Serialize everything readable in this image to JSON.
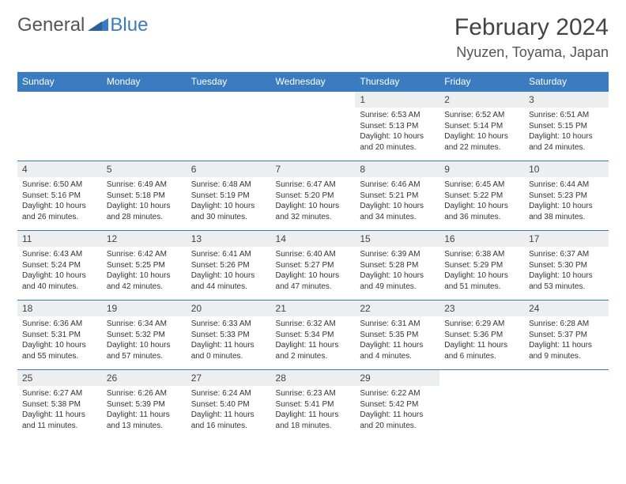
{
  "brand": {
    "part1": "General",
    "part2": "Blue"
  },
  "header": {
    "month": "February 2024",
    "location": "Nyuzen, Toyama, Japan"
  },
  "colors": {
    "accent": "#3b7bbf",
    "header_bg": "#3b7bbf",
    "daynum_bg": "#eceef0",
    "text": "#333333"
  },
  "weekdays": [
    "Sunday",
    "Monday",
    "Tuesday",
    "Wednesday",
    "Thursday",
    "Friday",
    "Saturday"
  ],
  "weeks": [
    [
      {
        "day": "",
        "sunrise": "",
        "sunset": "",
        "daylight": ""
      },
      {
        "day": "",
        "sunrise": "",
        "sunset": "",
        "daylight": ""
      },
      {
        "day": "",
        "sunrise": "",
        "sunset": "",
        "daylight": ""
      },
      {
        "day": "",
        "sunrise": "",
        "sunset": "",
        "daylight": ""
      },
      {
        "day": "1",
        "sunrise": "Sunrise: 6:53 AM",
        "sunset": "Sunset: 5:13 PM",
        "daylight": "Daylight: 10 hours and 20 minutes."
      },
      {
        "day": "2",
        "sunrise": "Sunrise: 6:52 AM",
        "sunset": "Sunset: 5:14 PM",
        "daylight": "Daylight: 10 hours and 22 minutes."
      },
      {
        "day": "3",
        "sunrise": "Sunrise: 6:51 AM",
        "sunset": "Sunset: 5:15 PM",
        "daylight": "Daylight: 10 hours and 24 minutes."
      }
    ],
    [
      {
        "day": "4",
        "sunrise": "Sunrise: 6:50 AM",
        "sunset": "Sunset: 5:16 PM",
        "daylight": "Daylight: 10 hours and 26 minutes."
      },
      {
        "day": "5",
        "sunrise": "Sunrise: 6:49 AM",
        "sunset": "Sunset: 5:18 PM",
        "daylight": "Daylight: 10 hours and 28 minutes."
      },
      {
        "day": "6",
        "sunrise": "Sunrise: 6:48 AM",
        "sunset": "Sunset: 5:19 PM",
        "daylight": "Daylight: 10 hours and 30 minutes."
      },
      {
        "day": "7",
        "sunrise": "Sunrise: 6:47 AM",
        "sunset": "Sunset: 5:20 PM",
        "daylight": "Daylight: 10 hours and 32 minutes."
      },
      {
        "day": "8",
        "sunrise": "Sunrise: 6:46 AM",
        "sunset": "Sunset: 5:21 PM",
        "daylight": "Daylight: 10 hours and 34 minutes."
      },
      {
        "day": "9",
        "sunrise": "Sunrise: 6:45 AM",
        "sunset": "Sunset: 5:22 PM",
        "daylight": "Daylight: 10 hours and 36 minutes."
      },
      {
        "day": "10",
        "sunrise": "Sunrise: 6:44 AM",
        "sunset": "Sunset: 5:23 PM",
        "daylight": "Daylight: 10 hours and 38 minutes."
      }
    ],
    [
      {
        "day": "11",
        "sunrise": "Sunrise: 6:43 AM",
        "sunset": "Sunset: 5:24 PM",
        "daylight": "Daylight: 10 hours and 40 minutes."
      },
      {
        "day": "12",
        "sunrise": "Sunrise: 6:42 AM",
        "sunset": "Sunset: 5:25 PM",
        "daylight": "Daylight: 10 hours and 42 minutes."
      },
      {
        "day": "13",
        "sunrise": "Sunrise: 6:41 AM",
        "sunset": "Sunset: 5:26 PM",
        "daylight": "Daylight: 10 hours and 44 minutes."
      },
      {
        "day": "14",
        "sunrise": "Sunrise: 6:40 AM",
        "sunset": "Sunset: 5:27 PM",
        "daylight": "Daylight: 10 hours and 47 minutes."
      },
      {
        "day": "15",
        "sunrise": "Sunrise: 6:39 AM",
        "sunset": "Sunset: 5:28 PM",
        "daylight": "Daylight: 10 hours and 49 minutes."
      },
      {
        "day": "16",
        "sunrise": "Sunrise: 6:38 AM",
        "sunset": "Sunset: 5:29 PM",
        "daylight": "Daylight: 10 hours and 51 minutes."
      },
      {
        "day": "17",
        "sunrise": "Sunrise: 6:37 AM",
        "sunset": "Sunset: 5:30 PM",
        "daylight": "Daylight: 10 hours and 53 minutes."
      }
    ],
    [
      {
        "day": "18",
        "sunrise": "Sunrise: 6:36 AM",
        "sunset": "Sunset: 5:31 PM",
        "daylight": "Daylight: 10 hours and 55 minutes."
      },
      {
        "day": "19",
        "sunrise": "Sunrise: 6:34 AM",
        "sunset": "Sunset: 5:32 PM",
        "daylight": "Daylight: 10 hours and 57 minutes."
      },
      {
        "day": "20",
        "sunrise": "Sunrise: 6:33 AM",
        "sunset": "Sunset: 5:33 PM",
        "daylight": "Daylight: 11 hours and 0 minutes."
      },
      {
        "day": "21",
        "sunrise": "Sunrise: 6:32 AM",
        "sunset": "Sunset: 5:34 PM",
        "daylight": "Daylight: 11 hours and 2 minutes."
      },
      {
        "day": "22",
        "sunrise": "Sunrise: 6:31 AM",
        "sunset": "Sunset: 5:35 PM",
        "daylight": "Daylight: 11 hours and 4 minutes."
      },
      {
        "day": "23",
        "sunrise": "Sunrise: 6:29 AM",
        "sunset": "Sunset: 5:36 PM",
        "daylight": "Daylight: 11 hours and 6 minutes."
      },
      {
        "day": "24",
        "sunrise": "Sunrise: 6:28 AM",
        "sunset": "Sunset: 5:37 PM",
        "daylight": "Daylight: 11 hours and 9 minutes."
      }
    ],
    [
      {
        "day": "25",
        "sunrise": "Sunrise: 6:27 AM",
        "sunset": "Sunset: 5:38 PM",
        "daylight": "Daylight: 11 hours and 11 minutes."
      },
      {
        "day": "26",
        "sunrise": "Sunrise: 6:26 AM",
        "sunset": "Sunset: 5:39 PM",
        "daylight": "Daylight: 11 hours and 13 minutes."
      },
      {
        "day": "27",
        "sunrise": "Sunrise: 6:24 AM",
        "sunset": "Sunset: 5:40 PM",
        "daylight": "Daylight: 11 hours and 16 minutes."
      },
      {
        "day": "28",
        "sunrise": "Sunrise: 6:23 AM",
        "sunset": "Sunset: 5:41 PM",
        "daylight": "Daylight: 11 hours and 18 minutes."
      },
      {
        "day": "29",
        "sunrise": "Sunrise: 6:22 AM",
        "sunset": "Sunset: 5:42 PM",
        "daylight": "Daylight: 11 hours and 20 minutes."
      },
      {
        "day": "",
        "sunrise": "",
        "sunset": "",
        "daylight": ""
      },
      {
        "day": "",
        "sunrise": "",
        "sunset": "",
        "daylight": ""
      }
    ]
  ]
}
